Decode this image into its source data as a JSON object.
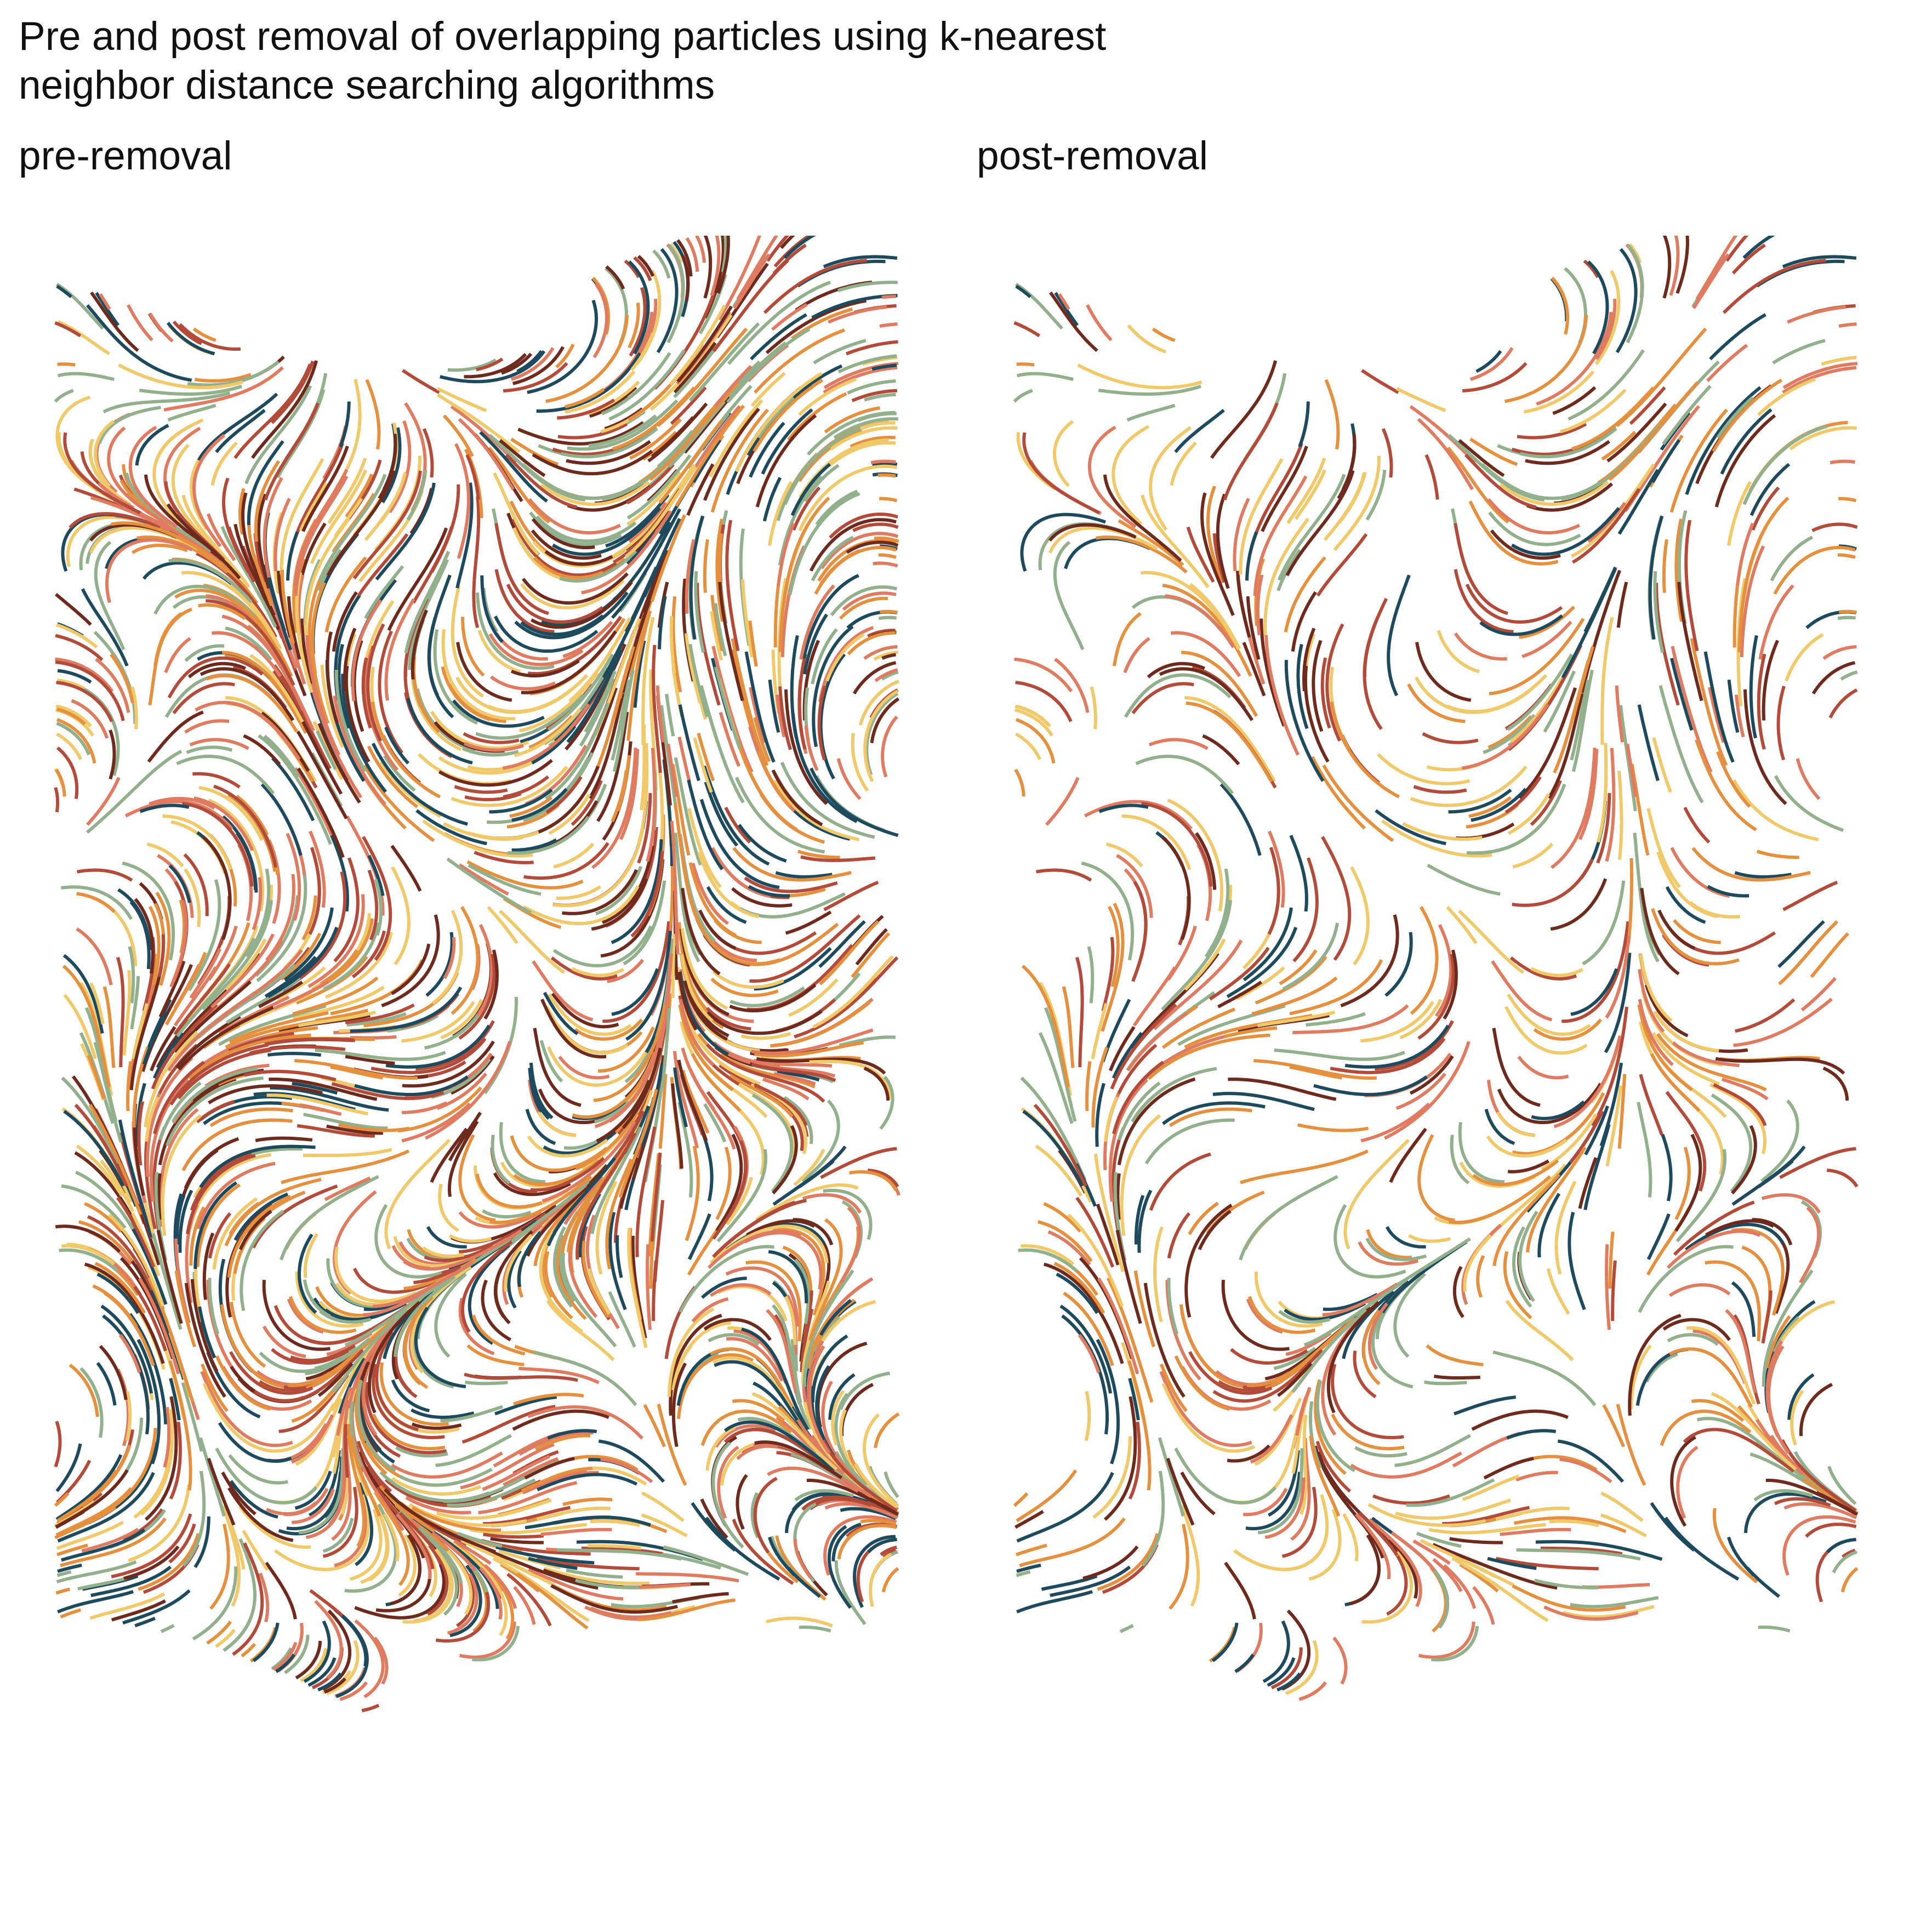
{
  "title": "Pre and post removal of overlapping particles using k-nearest\nneighbor distance searching algorithms",
  "panels": [
    {
      "id": "pre",
      "label": "pre-removal"
    },
    {
      "id": "post",
      "label": "post-removal"
    }
  ],
  "palette": [
    "#1d4a5c",
    "#6d2a1d",
    "#b24b3a",
    "#df7b60",
    "#e5903f",
    "#f0c96b",
    "#93b08d"
  ],
  "flow": {
    "seed": 7,
    "pre_count": 2100,
    "post_keep_fraction": 0.42
  }
}
